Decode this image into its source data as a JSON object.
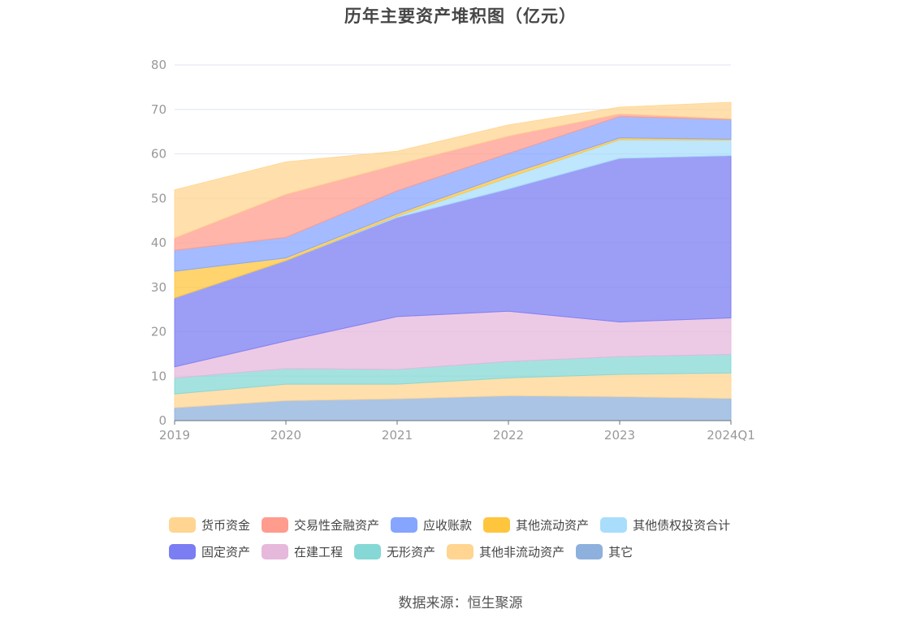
{
  "title": "历年主要资产堆积图（亿元）",
  "source": "数据来源：恒生聚源",
  "chart_data": {
    "type": "area",
    "stacked": true,
    "title": "历年主要资产堆积图（亿元）",
    "xlabel": "",
    "ylabel": "",
    "categories": [
      "2019",
      "2020",
      "2021",
      "2022",
      "2023",
      "2024Q1"
    ],
    "ylim": [
      0,
      80
    ],
    "yticks": [
      0,
      10,
      20,
      30,
      40,
      50,
      60,
      70,
      80
    ],
    "grid": true,
    "legend_position": "bottom",
    "series": [
      {
        "name": "其它",
        "color": "#8eb0dd",
        "values": [
          2.9,
          4.5,
          4.9,
          5.6,
          5.4,
          5.0
        ]
      },
      {
        "name": "其他非流动资产",
        "color": "#ffd591",
        "values": [
          3.1,
          3.7,
          3.3,
          4.0,
          5.0,
          5.7
        ]
      },
      {
        "name": "无形资产",
        "color": "#85d8d6",
        "values": [
          3.6,
          3.5,
          3.3,
          3.7,
          4.0,
          4.2
        ]
      },
      {
        "name": "在建工程",
        "color": "#e6b8dc",
        "values": [
          2.5,
          6.2,
          11.9,
          11.3,
          7.8,
          8.2
        ]
      },
      {
        "name": "固定资产",
        "color": "#7b7df3",
        "values": [
          15.5,
          18.1,
          22.3,
          27.5,
          36.8,
          36.5
        ]
      },
      {
        "name": "其他债权投资合计",
        "color": "#a8defb",
        "values": [
          0.0,
          0.0,
          0.3,
          2.6,
          4.2,
          3.5
        ]
      },
      {
        "name": "其他流动资产",
        "color": "#ffc53d",
        "values": [
          6.0,
          0.6,
          0.5,
          0.7,
          0.4,
          0.2
        ]
      },
      {
        "name": "应收账款",
        "color": "#85a5ff",
        "values": [
          4.7,
          4.6,
          5.2,
          4.7,
          4.8,
          4.4
        ]
      },
      {
        "name": "交易性金融资产",
        "color": "#ff9c8e",
        "values": [
          2.8,
          9.7,
          5.9,
          3.9,
          0.6,
          0.2
        ]
      },
      {
        "name": "货币资金",
        "color": "#ffd591",
        "values": [
          10.8,
          7.3,
          3.0,
          2.5,
          1.5,
          3.7
        ]
      }
    ]
  },
  "legend": {
    "rows": [
      [
        {
          "name": "货币资金",
          "color": "#ffd591"
        },
        {
          "name": "交易性金融资产",
          "color": "#ff9c8e"
        },
        {
          "name": "应收账款",
          "color": "#85a5ff"
        },
        {
          "name": "其他流动资产",
          "color": "#ffc53d"
        },
        {
          "name": "其他债权投资合计",
          "color": "#a8defb"
        }
      ],
      [
        {
          "name": "固定资产",
          "color": "#7b7df3"
        },
        {
          "name": "在建工程",
          "color": "#e6b8dc"
        },
        {
          "name": "无形资产",
          "color": "#85d8d6"
        },
        {
          "name": "其他非流动资产",
          "color": "#ffd591"
        },
        {
          "name": "其它",
          "color": "#8eb0dd"
        }
      ]
    ]
  }
}
